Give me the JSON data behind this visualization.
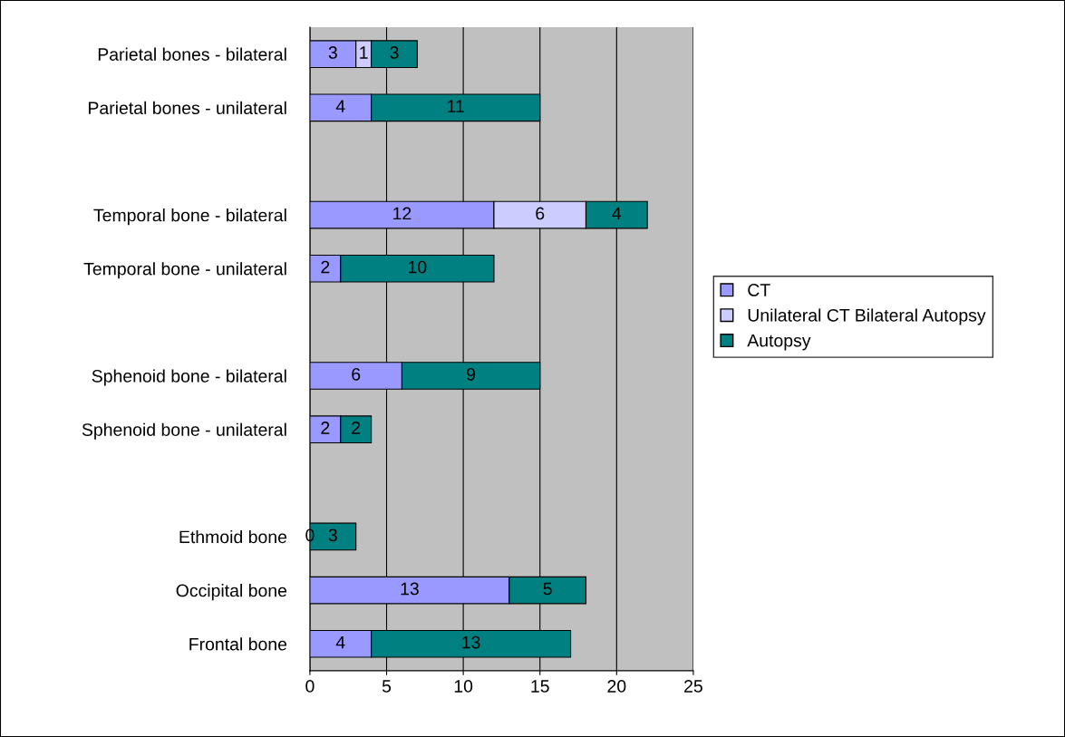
{
  "chart_data": {
    "type": "bar",
    "orientation": "horizontal",
    "stacked": true,
    "categories": [
      "Parietal bones - bilateral",
      "Parietal bones - unilateral",
      null,
      "Temporal bone - bilateral",
      "Temporal bone - unilateral",
      null,
      "Sphenoid bone - bilateral",
      "Sphenoid bone - unilateral",
      null,
      "Ethmoid bone",
      "Occipital bone",
      "Frontal bone"
    ],
    "series": [
      {
        "name": "CT",
        "color": "#9999ff",
        "values": [
          3,
          4,
          null,
          12,
          2,
          null,
          6,
          2,
          null,
          0,
          13,
          4
        ]
      },
      {
        "name": "Unilateral CT Bilateral Autopsy",
        "color": "#ccccff",
        "values": [
          1,
          null,
          null,
          6,
          null,
          null,
          null,
          null,
          null,
          null,
          null,
          null
        ]
      },
      {
        "name": "Autopsy",
        "color": "#008080",
        "values": [
          3,
          11,
          null,
          4,
          10,
          null,
          9,
          2,
          null,
          3,
          5,
          13
        ]
      }
    ],
    "xlim": [
      0,
      25
    ],
    "xticks": [
      0,
      5,
      10,
      15,
      20,
      25
    ],
    "grid": "x",
    "legend": "right",
    "data_labels": true
  }
}
